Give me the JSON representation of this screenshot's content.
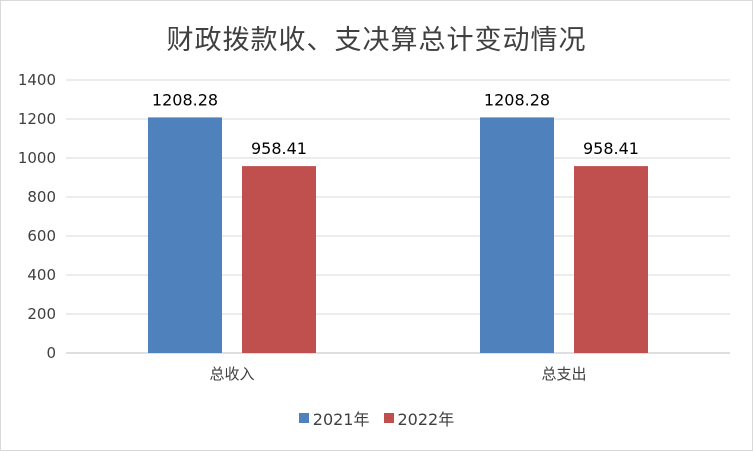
{
  "chart_data": {
    "type": "bar",
    "title": "财政拨款收、支决算总计变动情况",
    "categories": [
      "总收入",
      "总支出"
    ],
    "series": [
      {
        "name": "2021年",
        "values": [
          1208.28,
          1208.28
        ],
        "color": "#4f81bd",
        "labels": [
          "1208.28",
          "1208.28"
        ]
      },
      {
        "name": "2022年",
        "values": [
          958.41,
          958.41
        ],
        "color": "#c0504d",
        "labels": [
          "958.41",
          "958.41"
        ]
      }
    ],
    "ylim": [
      0,
      1400
    ],
    "yticks": [
      0,
      200,
      400,
      600,
      800,
      1000,
      1200,
      1400
    ],
    "grid": true,
    "legend_position": "bottom"
  }
}
